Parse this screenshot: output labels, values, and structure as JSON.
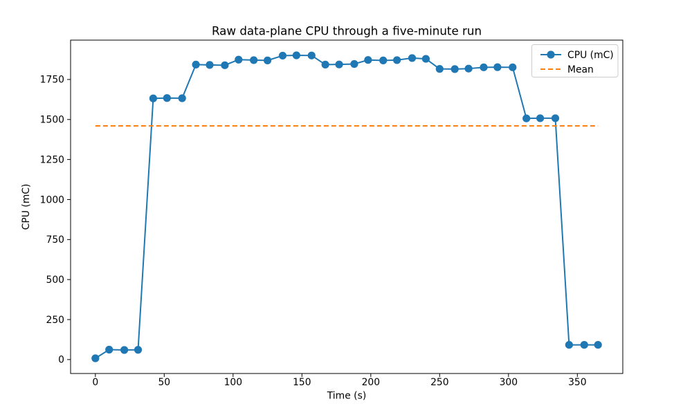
{
  "chart_data": {
    "type": "line",
    "title": "Raw data-plane CPU through a five-minute run",
    "xlabel": "Time (s)",
    "ylabel": "CPU (mC)",
    "xlim": [
      -18,
      383
    ],
    "ylim": [
      -87,
      1996
    ],
    "xticks": [
      0,
      50,
      100,
      150,
      200,
      250,
      300,
      350
    ],
    "yticks": [
      0,
      250,
      500,
      750,
      1000,
      1250,
      1500,
      1750
    ],
    "grid": false,
    "background": "#ffffff",
    "axis_color": "#000000",
    "legend_position": "upper right",
    "series": [
      {
        "name": "CPU (mC)",
        "color": "#1f77b4",
        "marker": "circle",
        "line_style": "solid",
        "x": [
          0,
          10,
          21,
          31,
          42,
          52,
          63,
          73,
          83,
          94,
          104,
          115,
          125,
          136,
          146,
          157,
          167,
          177,
          188,
          198,
          209,
          219,
          230,
          240,
          250,
          261,
          271,
          282,
          292,
          303,
          313,
          323,
          334,
          344,
          355,
          365
        ],
        "y": [
          8,
          62,
          60,
          61,
          1632,
          1634,
          1633,
          1843,
          1841,
          1839,
          1874,
          1871,
          1869,
          1899,
          1901,
          1900,
          1843,
          1844,
          1847,
          1872,
          1869,
          1871,
          1884,
          1879,
          1816,
          1815,
          1818,
          1826,
          1827,
          1826,
          1507,
          1508,
          1508,
          92,
          92,
          92
        ]
      }
    ],
    "reference_lines": [
      {
        "name": "Mean",
        "color": "#ff7f0e",
        "line_style": "dashed",
        "value": 1460.1,
        "x_extent": [
          0,
          365
        ]
      }
    ]
  }
}
